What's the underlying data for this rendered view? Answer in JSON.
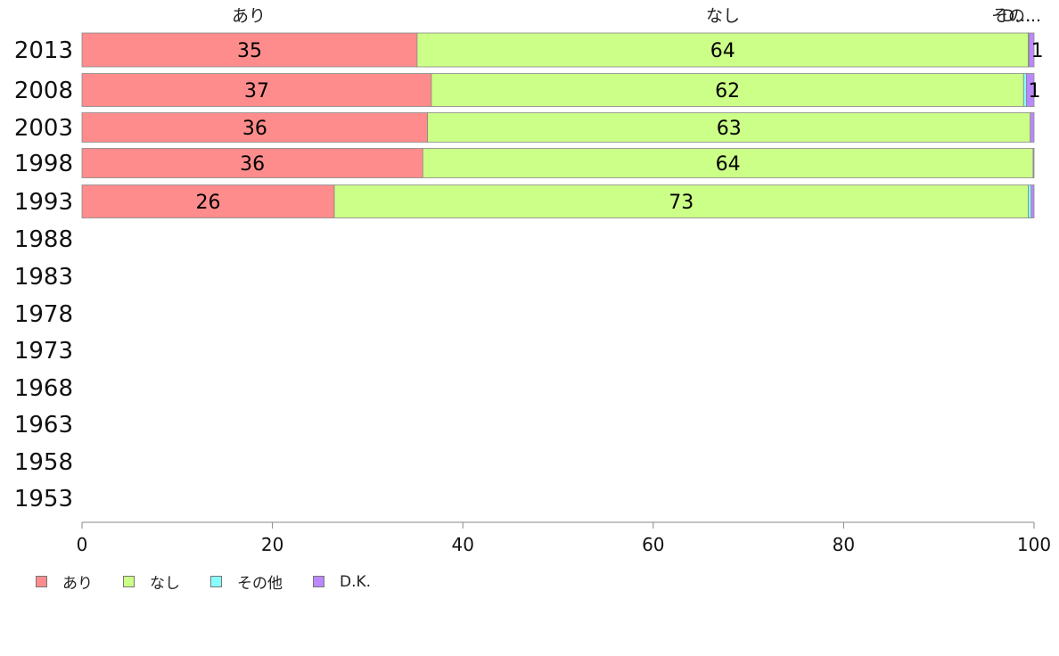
{
  "chart_data": {
    "type": "bar",
    "orientation": "horizontal",
    "stacked": true,
    "categories": [
      "2013",
      "2008",
      "2003",
      "1998",
      "1993",
      "1988",
      "1983",
      "1978",
      "1973",
      "1968",
      "1963",
      "1958",
      "1953"
    ],
    "series": [
      {
        "name": "あり",
        "color": "#FF8C8C",
        "values": [
          35.2,
          36.7,
          36.3,
          35.8,
          26.5,
          null,
          null,
          null,
          null,
          null,
          null,
          null,
          null
        ]
      },
      {
        "name": "なし",
        "color": "#CCFF88",
        "values": [
          64.2,
          62.2,
          63.3,
          64.1,
          72.9,
          null,
          null,
          null,
          null,
          null,
          null,
          null,
          null
        ]
      },
      {
        "name": "その他",
        "color": "#88FFFF",
        "values": [
          0.1,
          0.3,
          0.0,
          0.0,
          0.3,
          null,
          null,
          null,
          null,
          null,
          null,
          null,
          null
        ]
      },
      {
        "name": "D.K.",
        "color": "#BB88FF",
        "values": [
          0.5,
          0.8,
          0.4,
          0.1,
          0.3,
          null,
          null,
          null,
          null,
          null,
          null,
          null,
          null
        ]
      }
    ],
    "data_labels": [
      [
        "35",
        "64",
        "",
        "1"
      ],
      [
        "37",
        "62",
        "",
        "1"
      ],
      [
        "36",
        "63",
        "",
        ""
      ],
      [
        "36",
        "64",
        "",
        ""
      ],
      [
        "26",
        "73",
        "",
        ""
      ]
    ],
    "top_labels": [
      "あり",
      "なし",
      "その...",
      "D..."
    ],
    "xlim": [
      0,
      100
    ],
    "xticks": [
      "0",
      "20",
      "40",
      "60",
      "80",
      "100"
    ],
    "legend": {
      "position": "bottom-left"
    },
    "grid": false
  }
}
